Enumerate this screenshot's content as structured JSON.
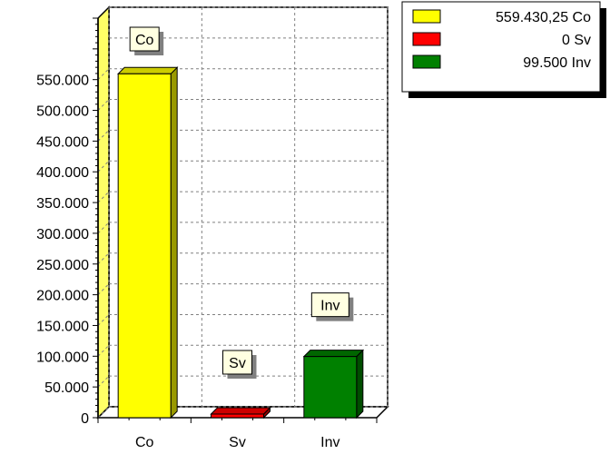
{
  "chart_data": {
    "type": "bar",
    "categories": [
      "Co",
      "Sv",
      "Inv"
    ],
    "values": [
      559430.25,
      0,
      99500
    ],
    "colors": [
      "#ffff00",
      "#ff0000",
      "#008000"
    ],
    "bar_labels": [
      "Co",
      "Sv",
      "Inv"
    ],
    "y_ticks": [
      "0",
      "50.000",
      "100.000",
      "150.000",
      "200.000",
      "250.000",
      "300.000",
      "350.000",
      "400.000",
      "450.000",
      "500.000",
      "550.000"
    ],
    "ylim": [
      0,
      650000
    ],
    "grid": true,
    "legend": {
      "placement": "top-right",
      "entries": [
        {
          "label": "559.430,25 Co",
          "color": "#ffff00"
        },
        {
          "label": "0 Sv",
          "color": "#ff0000"
        },
        {
          "label": "99.500 Inv",
          "color": "#008000"
        }
      ]
    }
  }
}
